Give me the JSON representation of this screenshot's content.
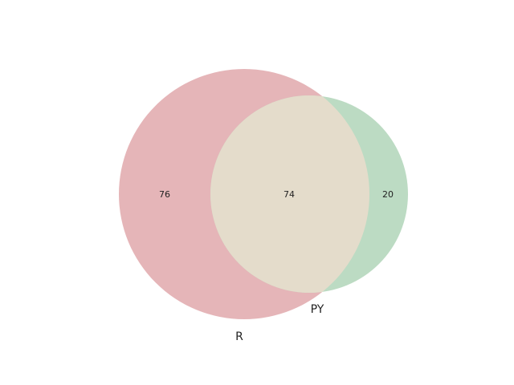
{
  "diagram": {
    "type": "venn2",
    "sets": [
      {
        "name": "R",
        "color": "#e5b5b8"
      },
      {
        "name": "PY",
        "color": "#bcdbc3"
      }
    ],
    "overlap_color": "#e4dccb",
    "regions": {
      "R_only": "76",
      "both": "74",
      "PY_only": "20"
    }
  }
}
